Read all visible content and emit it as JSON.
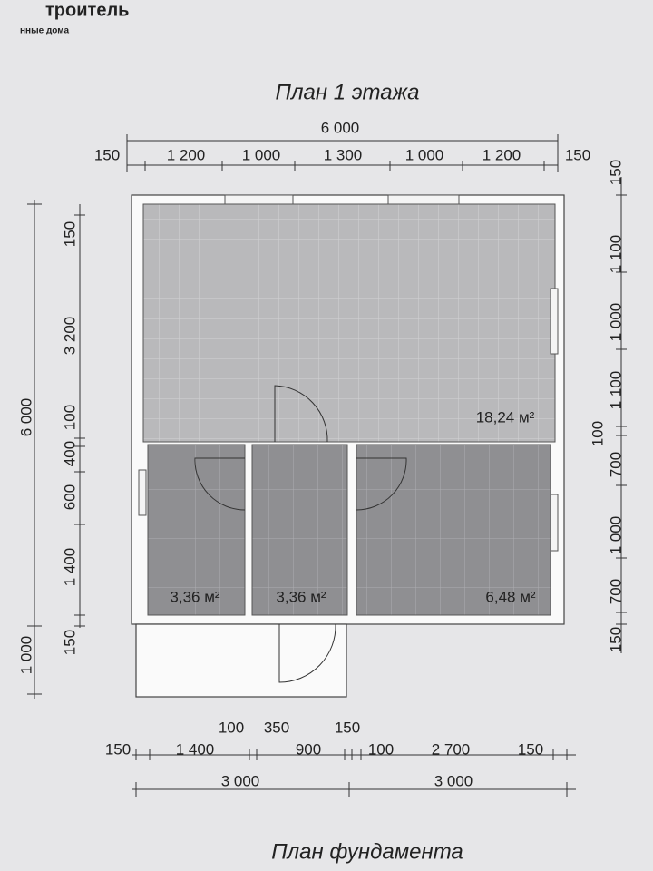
{
  "header": {
    "brand": "троитель",
    "tagline": "нные дома"
  },
  "title": "План 1 этажа",
  "top_dims": {
    "total": "6 000",
    "parts": [
      "150",
      "1 200",
      "1 000",
      "1 300",
      "1 000",
      "1 200",
      "150"
    ]
  },
  "left_dims": {
    "outer": [
      "6 000",
      "1 000"
    ],
    "inner": [
      "150",
      "3 200",
      "100",
      "400",
      "600",
      "1 400",
      "150"
    ]
  },
  "right_dims": [
    "150",
    "1 100",
    "1 000",
    "1 100",
    "100",
    "700",
    "1 000",
    "700",
    "150"
  ],
  "rooms": [
    "18,24 м²",
    "3,36 м²",
    "3,36 м²",
    "6,48 м²"
  ],
  "bottom_dims": {
    "parts": [
      "150",
      "1 400",
      "100",
      "350",
      "900",
      "150",
      "100",
      "2 700",
      "150"
    ],
    "totals": [
      "3 000",
      "3 000"
    ]
  },
  "footer": "План фундамента"
}
